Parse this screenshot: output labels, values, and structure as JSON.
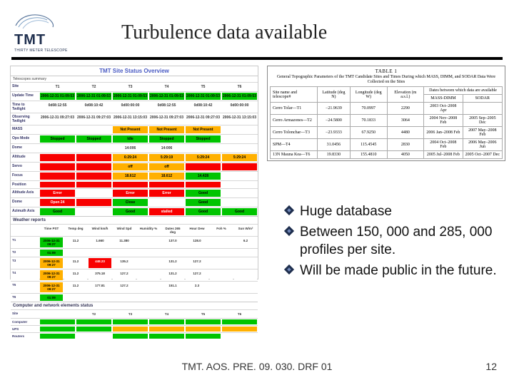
{
  "title": "Turbulence data available",
  "logo": {
    "text": "TMT",
    "sub": "THIRTY METER TELESCOPE"
  },
  "status": {
    "title": "TMT Site Status Overview",
    "sub": "Telescopes summary",
    "cols": [
      "t.1",
      "t.2",
      "t.3",
      "t.4",
      "t.5",
      "t.6"
    ],
    "rows": [
      {
        "h": "Site",
        "cells": [
          {
            "t": "T1",
            "c": "w"
          },
          {
            "t": "T2",
            "c": "w"
          },
          {
            "t": "T3",
            "c": "w"
          },
          {
            "t": "T4",
            "c": "w"
          },
          {
            "t": "T5",
            "c": "w"
          },
          {
            "t": "T6",
            "c": "w"
          }
        ]
      },
      {
        "h": "Update Time",
        "cells": [
          {
            "t": "2006-12-31 01:09:53",
            "c": "g"
          },
          {
            "t": "2006-12-31 01:09:53",
            "c": "g"
          },
          {
            "t": "2006-12-31 01:09:53",
            "c": "g"
          },
          {
            "t": "2006-12-31 01:09:53",
            "c": "g"
          },
          {
            "t": "2006-12-31 01:09:53",
            "c": "g"
          },
          {
            "t": "2006-12-31 01:09:53",
            "c": "g"
          }
        ]
      },
      {
        "h": "Time to Twilight",
        "cells": [
          {
            "t": "0d08:12:55",
            "c": "w"
          },
          {
            "t": "0d08:10:42",
            "c": "w"
          },
          {
            "t": "0d00:00:00",
            "c": "w"
          },
          {
            "t": "0d08:12:55",
            "c": "w"
          },
          {
            "t": "0d08:10:42",
            "c": "w"
          },
          {
            "t": "0d00:00:00",
            "c": "w"
          }
        ]
      },
      {
        "h": "Observing Twilight",
        "cells": [
          {
            "t": "2006-12-31 09:27:03",
            "c": "w"
          },
          {
            "t": "2006-12-31 09:27:03",
            "c": "w"
          },
          {
            "t": "2006-12-31 13:15:03",
            "c": "w"
          },
          {
            "t": "2006-12-31 09:27:03",
            "c": "w"
          },
          {
            "t": "2006-12-31 09:27:03",
            "c": "w"
          },
          {
            "t": "2006-12-31 13:15:03",
            "c": "w"
          }
        ]
      },
      {
        "h": "MASS",
        "cells": [
          {
            "t": "",
            "c": "w"
          },
          {
            "t": "",
            "c": "w"
          },
          {
            "t": "Not Present",
            "c": "y"
          },
          {
            "t": "Not Present",
            "c": "y"
          },
          {
            "t": "Not Present",
            "c": "y"
          },
          {
            "t": "",
            "c": "w"
          }
        ]
      },
      {
        "h": "Ops Mode",
        "cells": [
          {
            "t": "Stopped",
            "c": "g"
          },
          {
            "t": "Stopped",
            "c": "g"
          },
          {
            "t": "Idle",
            "c": "g"
          },
          {
            "t": "Stopped",
            "c": "g"
          },
          {
            "t": "Stopped",
            "c": "g"
          },
          {
            "t": "",
            "c": "w"
          }
        ]
      },
      {
        "h": "Dome",
        "cells": [
          {
            "t": "",
            "c": "w"
          },
          {
            "t": "",
            "c": "w"
          },
          {
            "t": "14:006",
            "c": "w"
          },
          {
            "t": "14:006",
            "c": "w"
          },
          {
            "t": "",
            "c": "w"
          },
          {
            "t": "",
            "c": "w"
          }
        ]
      },
      {
        "h": "Altitude",
        "cells": [
          {
            "t": "",
            "c": "r"
          },
          {
            "t": "",
            "c": "r"
          },
          {
            "t": "6:29:24",
            "c": "y"
          },
          {
            "t": "5:29:19",
            "c": "y"
          },
          {
            "t": "5:29:24",
            "c": "y"
          },
          {
            "t": "5:29:24",
            "c": "y"
          }
        ]
      },
      {
        "h": "Servo",
        "cells": [
          {
            "t": "",
            "c": "r"
          },
          {
            "t": "",
            "c": "r"
          },
          {
            "t": "off",
            "c": "y"
          },
          {
            "t": "off",
            "c": "y"
          },
          {
            "t": "",
            "c": "r"
          },
          {
            "t": "",
            "c": "r"
          }
        ]
      },
      {
        "h": "Focus",
        "cells": [
          {
            "t": "",
            "c": "r"
          },
          {
            "t": "",
            "c": "r"
          },
          {
            "t": "18.612",
            "c": "y"
          },
          {
            "t": "18.612",
            "c": "y"
          },
          {
            "t": "14.428",
            "c": "g"
          },
          {
            "t": "",
            "c": "w"
          }
        ]
      },
      {
        "h": "Position",
        "cells": [
          {
            "t": "",
            "c": "r"
          },
          {
            "t": "",
            "c": "r"
          },
          {
            "t": "",
            "c": "r"
          },
          {
            "t": "",
            "c": "r"
          },
          {
            "t": "",
            "c": "r"
          },
          {
            "t": "",
            "c": "w"
          }
        ]
      },
      {
        "h": "Altitude Axis",
        "cells": [
          {
            "t": "Error",
            "c": "r"
          },
          {
            "t": "",
            "c": "w"
          },
          {
            "t": "Error",
            "c": "r"
          },
          {
            "t": "Error",
            "c": "r"
          },
          {
            "t": "Good",
            "c": "g"
          },
          {
            "t": "",
            "c": "w"
          }
        ]
      },
      {
        "h": "Dome",
        "cells": [
          {
            "t": "Open 24",
            "c": "r"
          },
          {
            "t": "",
            "c": "r"
          },
          {
            "t": "Close",
            "c": "g"
          },
          {
            "t": "",
            "c": "w"
          },
          {
            "t": "Good",
            "c": "g"
          },
          {
            "t": "",
            "c": "w"
          }
        ]
      },
      {
        "h": "Azimuth Axis",
        "cells": [
          {
            "t": "Good",
            "c": "g"
          },
          {
            "t": "",
            "c": "w"
          },
          {
            "t": "Good",
            "c": "g"
          },
          {
            "t": "stalled",
            "c": "r"
          },
          {
            "t": "Good",
            "c": "g"
          },
          {
            "t": "Good",
            "c": "g"
          }
        ]
      }
    ],
    "weather_title": "Weather reports",
    "weather_cols": [
      "Time PST",
      "Temp deg",
      "Wind km/h",
      "Wind Spd",
      "Humidity %",
      "Dates 265 deg",
      "Hour Dew",
      "Foh %",
      "Sun W/m²"
    ],
    "weather_rows": [
      {
        "h": "T1",
        "cells": [
          {
            "t": "2006-12-31 09:27",
            "c": "g"
          },
          {
            "t": "11.2",
            "c": "w"
          },
          {
            "t": "1.660",
            "c": "w"
          },
          {
            "t": "11.380",
            "c": "w"
          },
          {
            "t": "",
            "c": "w"
          },
          {
            "t": "137.0",
            "c": "w"
          },
          {
            "t": "128.0",
            "c": "w"
          },
          {
            "t": "",
            "c": "w"
          },
          {
            "t": "6.2",
            "c": "w"
          }
        ]
      },
      {
        "h": "T2",
        "cells": [
          {
            "t": "01:09",
            "c": "g"
          },
          {
            "t": "",
            "c": "w"
          },
          {
            "t": "",
            "c": "w"
          },
          {
            "t": "",
            "c": "w"
          },
          {
            "t": "",
            "c": "w"
          },
          {
            "t": "",
            "c": "w"
          },
          {
            "t": "",
            "c": "w"
          },
          {
            "t": "",
            "c": "w"
          },
          {
            "t": "",
            "c": "w"
          }
        ]
      },
      {
        "h": "T3",
        "cells": [
          {
            "t": "2006-12-31 09:27",
            "c": "y"
          },
          {
            "t": "11.2",
            "c": "w"
          },
          {
            "t": "448.23",
            "c": "r"
          },
          {
            "t": "135.2",
            "c": "w"
          },
          {
            "t": "",
            "c": "w"
          },
          {
            "t": "131.2",
            "c": "w"
          },
          {
            "t": "127.2",
            "c": "w"
          },
          {
            "t": "",
            "c": "w"
          },
          {
            "t": "",
            "c": "w"
          }
        ]
      },
      {
        "h": "T4",
        "cells": [
          {
            "t": "2006-12-31 09:27",
            "c": "y"
          },
          {
            "t": "11.2",
            "c": "w"
          },
          {
            "t": "375.18",
            "c": "w"
          },
          {
            "t": "127.2",
            "c": "w"
          },
          {
            "t": "",
            "c": "w"
          },
          {
            "t": "131.2",
            "c": "w"
          },
          {
            "t": "127.2",
            "c": "w"
          },
          {
            "t": "",
            "c": "w"
          },
          {
            "t": "",
            "c": "w"
          }
        ]
      },
      {
        "h": "T5",
        "cells": [
          {
            "t": "2006-12-31 09:27",
            "c": "y"
          },
          {
            "t": "11.2",
            "c": "w"
          },
          {
            "t": "177.81",
            "c": "w"
          },
          {
            "t": "127.2",
            "c": "w"
          },
          {
            "t": "",
            "c": "w"
          },
          {
            "t": "151.1",
            "c": "w"
          },
          {
            "t": "2.3",
            "c": "w"
          },
          {
            "t": "",
            "c": "w"
          },
          {
            "t": "",
            "c": "w"
          }
        ]
      },
      {
        "h": "T6",
        "cells": [
          {
            "t": "01:09",
            "c": "g"
          },
          {
            "t": "",
            "c": "w"
          },
          {
            "t": "",
            "c": "w"
          },
          {
            "t": "",
            "c": "w"
          },
          {
            "t": "",
            "c": "w"
          },
          {
            "t": "",
            "c": "w"
          },
          {
            "t": "",
            "c": "w"
          },
          {
            "t": "",
            "c": "w"
          },
          {
            "t": "",
            "c": "w"
          }
        ]
      }
    ],
    "net_title": "Computer and network elements status",
    "net_cols": [
      "T1",
      "T2",
      "T3",
      "T4",
      "T5",
      "T6"
    ],
    "net_rows": [
      {
        "h": "Site",
        "cells": [
          {
            "t": "",
            "c": "w"
          },
          {
            "t": "T2",
            "c": "w"
          },
          {
            "t": "T3",
            "c": "w"
          },
          {
            "t": "T4",
            "c": "w"
          },
          {
            "t": "T5",
            "c": "w"
          },
          {
            "t": "T6",
            "c": "w"
          }
        ]
      },
      {
        "h": "Computer",
        "cells": [
          {
            "t": "",
            "c": "g"
          },
          {
            "t": "",
            "c": "g"
          },
          {
            "t": "",
            "c": "g"
          },
          {
            "t": "",
            "c": "g"
          },
          {
            "t": "",
            "c": "g"
          },
          {
            "t": "",
            "c": "g"
          }
        ]
      },
      {
        "h": "UPS",
        "cells": [
          {
            "t": "",
            "c": "g"
          },
          {
            "t": "",
            "c": "g"
          },
          {
            "t": "",
            "c": "y"
          },
          {
            "t": "",
            "c": "y"
          },
          {
            "t": "",
            "c": "y"
          },
          {
            "t": "",
            "c": "y"
          }
        ]
      },
      {
        "h": "Routers",
        "cells": [
          {
            "t": "",
            "c": "g"
          },
          {
            "t": "",
            "c": "w"
          },
          {
            "t": "",
            "c": "g"
          },
          {
            "t": "",
            "c": "g"
          },
          {
            "t": "",
            "c": "g"
          },
          {
            "t": "",
            "c": "w"
          }
        ]
      }
    ]
  },
  "tablefig": {
    "cap1": "TABLE 1",
    "cap2": "General Topographic Parameters of the TMT Candidate Sites and Times During which MASS, DIMM, and SODAR Data Were Collected on the Sites",
    "headers": [
      "Site name and telescope#",
      "Latitude (deg N)",
      "Longitude (deg W)",
      "Elevation (m a.s.l.)",
      "MASS-DIMM",
      "SODAR"
    ],
    "dates_span": "Dates between which data are available",
    "rows": [
      [
        "Cerro Tolar—T1",
        "−21.9639",
        "70.0997",
        "2290",
        "2003 Oct–2008 Apr",
        ""
      ],
      [
        "Cerro Armazones—T2",
        "−24.5800",
        "70.1833",
        "3064",
        "2004 Nov–2008 Feb",
        "2005 Sep–2005 Dec"
      ],
      [
        "Cerro Tolonchar—T3",
        "−23.9333",
        "67.9250",
        "4480",
        "2006 Jan–2008 Feb",
        "2007 May–2008 Feb"
      ],
      [
        "SPM—T4",
        "31.0456",
        "115.4545",
        "2830",
        "2004 Oct–2008 Feb",
        "2006 May–2006 Jun"
      ],
      [
        "13N Mauna Kea—T6",
        "19.8330",
        "155.4810",
        "4050",
        "2005 Jul–2008 Feb",
        "2005 Oct–2007 Dec"
      ]
    ]
  },
  "bullets": [
    "Huge database",
    "Between 150, 000 and 285, 000 profiles per site.",
    "Will be made public in the future."
  ],
  "footer": {
    "center": "TMT. AOS. PRE. 09. 030. DRF 01",
    "page": "12"
  }
}
